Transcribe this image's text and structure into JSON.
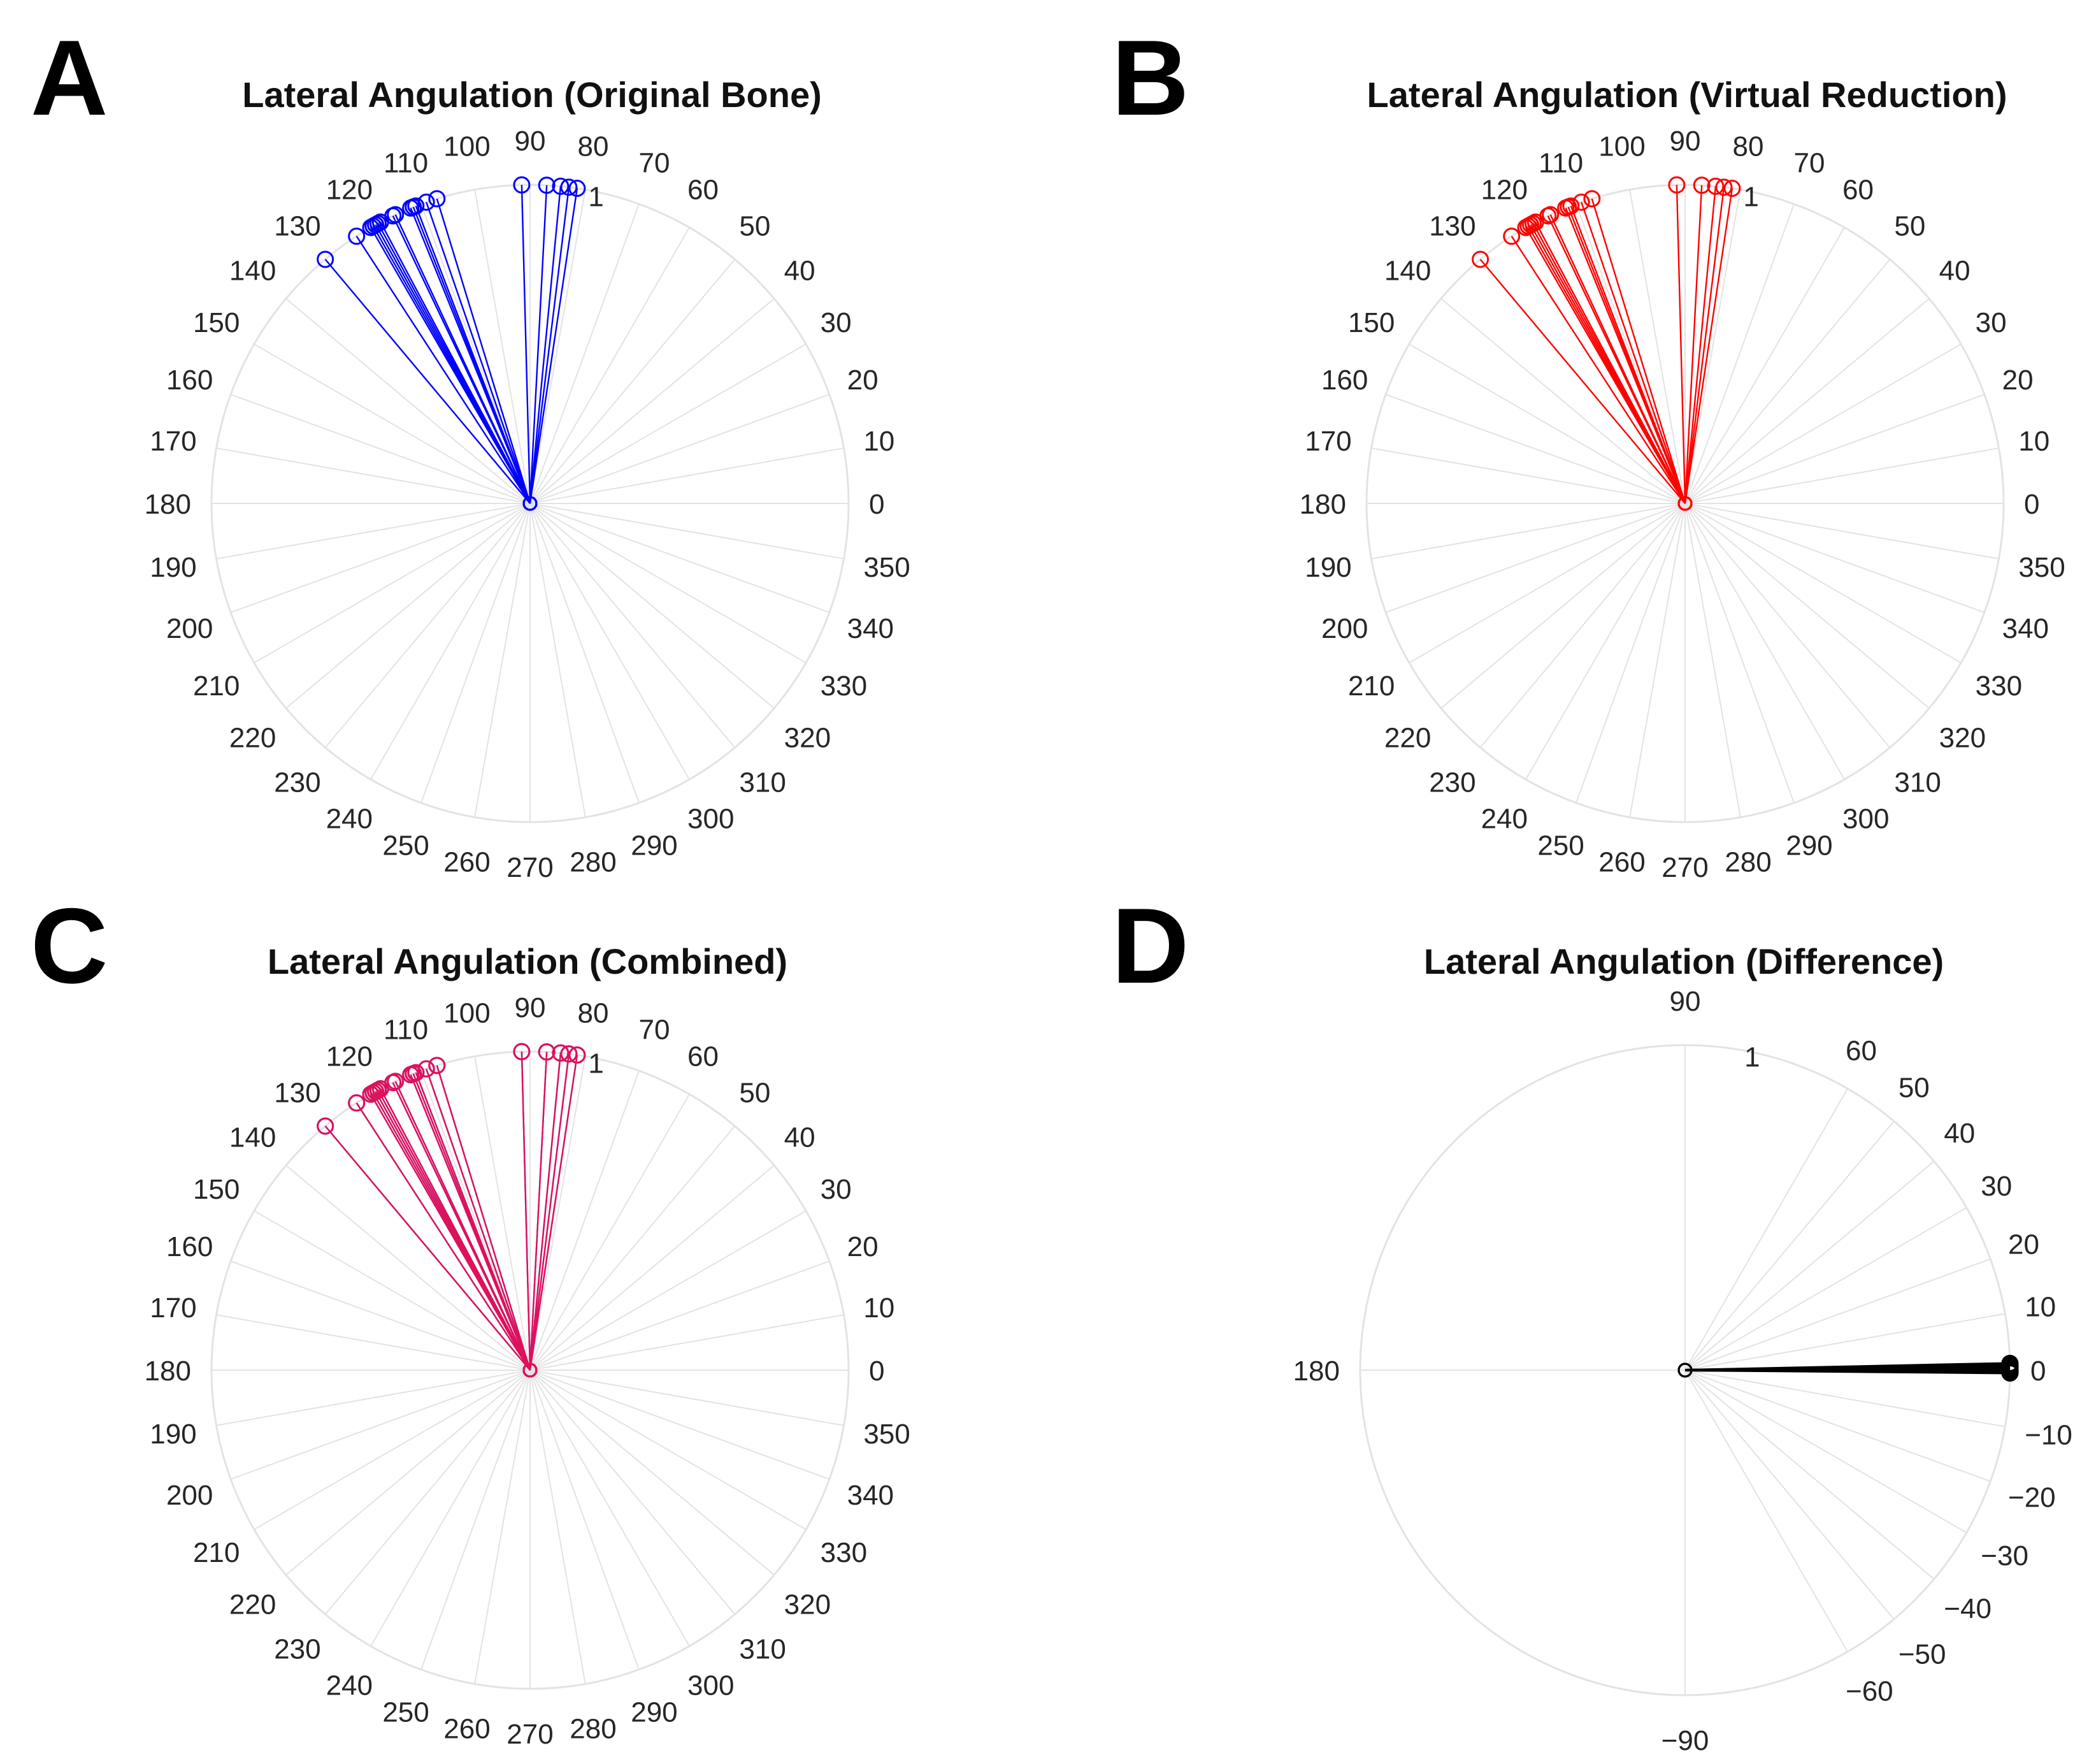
{
  "figure": {
    "panels": [
      "A",
      "B",
      "C",
      "D"
    ]
  },
  "chart_data": [
    {
      "panel": "A",
      "type": "polar",
      "title": "Lateral Angulation (Original Bone)",
      "theta_ticks": [
        0,
        10,
        20,
        30,
        40,
        50,
        60,
        70,
        80,
        90,
        100,
        110,
        120,
        130,
        140,
        150,
        160,
        170,
        180,
        190,
        200,
        210,
        220,
        230,
        240,
        250,
        260,
        270,
        280,
        290,
        300,
        310,
        320,
        330,
        340,
        350
      ],
      "theta_tick_labels": [
        "0",
        "10",
        "20",
        "30",
        "40",
        "50",
        "60",
        "70",
        "80",
        "90",
        "100",
        "110",
        "120",
        "130",
        "140",
        "150",
        "160",
        "170",
        "180",
        "190",
        "200",
        "210",
        "220",
        "230",
        "240",
        "250",
        "260",
        "270",
        "280",
        "290",
        "300",
        "310",
        "320",
        "330",
        "340",
        "350"
      ],
      "r_tick_label": "1",
      "rlim": [
        0,
        1
      ],
      "series": [
        {
          "name": "Original Bone",
          "color": "#0000ff",
          "r": 1,
          "theta": [
            81.5,
            83,
            84.5,
            87,
            91.5,
            107,
            109,
            111,
            111.5,
            112,
            115,
            115.5,
            118,
            118.5,
            119,
            119.5,
            120,
            123,
            130
          ]
        }
      ]
    },
    {
      "panel": "B",
      "type": "polar",
      "title": "Lateral Angulation (Virtual Reduction)",
      "theta_ticks": [
        0,
        10,
        20,
        30,
        40,
        50,
        60,
        70,
        80,
        90,
        100,
        110,
        120,
        130,
        140,
        150,
        160,
        170,
        180,
        190,
        200,
        210,
        220,
        230,
        240,
        250,
        260,
        270,
        280,
        290,
        300,
        310,
        320,
        330,
        340,
        350
      ],
      "theta_tick_labels": [
        "0",
        "10",
        "20",
        "30",
        "40",
        "50",
        "60",
        "70",
        "80",
        "90",
        "100",
        "110",
        "120",
        "130",
        "140",
        "150",
        "160",
        "170",
        "180",
        "190",
        "200",
        "210",
        "220",
        "230",
        "240",
        "250",
        "260",
        "270",
        "280",
        "290",
        "300",
        "310",
        "320",
        "330",
        "340",
        "350"
      ],
      "r_tick_label": "1",
      "rlim": [
        0,
        1
      ],
      "series": [
        {
          "name": "Virtual Reduction",
          "color": "#ff0000",
          "r": 1,
          "theta": [
            81.5,
            83,
            84.5,
            87,
            91.5,
            107,
            109,
            111,
            111.5,
            112,
            115,
            115.5,
            118,
            118.5,
            119,
            119.5,
            120,
            123,
            130
          ]
        }
      ]
    },
    {
      "panel": "C",
      "type": "polar",
      "title": "Lateral Angulation (Combined)",
      "theta_ticks": [
        0,
        10,
        20,
        30,
        40,
        50,
        60,
        70,
        80,
        90,
        100,
        110,
        120,
        130,
        140,
        150,
        160,
        170,
        180,
        190,
        200,
        210,
        220,
        230,
        240,
        250,
        260,
        270,
        280,
        290,
        300,
        310,
        320,
        330,
        340,
        350
      ],
      "theta_tick_labels": [
        "0",
        "10",
        "20",
        "30",
        "40",
        "50",
        "60",
        "70",
        "80",
        "90",
        "100",
        "110",
        "120",
        "130",
        "140",
        "150",
        "160",
        "170",
        "180",
        "190",
        "200",
        "210",
        "220",
        "230",
        "240",
        "250",
        "260",
        "270",
        "280",
        "290",
        "300",
        "310",
        "320",
        "330",
        "340",
        "350"
      ],
      "r_tick_label": "1",
      "rlim": [
        0,
        1
      ],
      "series": [
        {
          "name": "Original Bone",
          "color": "#3b3bd6",
          "r": 1,
          "theta": [
            81.5,
            83,
            84.5,
            87,
            91.5,
            107,
            109,
            111,
            111.5,
            112,
            115,
            115.5,
            118,
            118.5,
            119,
            119.5,
            120,
            123,
            130
          ]
        },
        {
          "name": "Virtual Reduction",
          "color": "#e0105a",
          "r": 1,
          "theta": [
            81.5,
            83,
            84.5,
            87,
            91.5,
            107,
            109,
            111,
            111.5,
            112,
            115,
            115.5,
            118,
            118.5,
            119,
            119.5,
            120,
            123,
            130
          ]
        }
      ]
    },
    {
      "panel": "D",
      "type": "polar",
      "title": "Lateral Angulation (Difference)",
      "theta_ticks": [
        90,
        60,
        50,
        40,
        30,
        20,
        10,
        0,
        -10,
        -20,
        -30,
        -40,
        -50,
        -60,
        -90,
        180
      ],
      "theta_tick_labels": [
        "90",
        "60",
        "50",
        "40",
        "30",
        "20",
        "10",
        "0",
        "−10",
        "−20",
        "−30",
        "−40",
        "−50",
        "−60",
        "−90",
        "180"
      ],
      "r_tick_label": "1",
      "rlim": [
        0,
        1
      ],
      "series": [
        {
          "name": "Difference",
          "color": "#000000",
          "r": 1,
          "theta": [
            0,
            0.3,
            0.5,
            0.7,
            1,
            -0.3,
            -0.5,
            1.2
          ]
        }
      ]
    }
  ]
}
